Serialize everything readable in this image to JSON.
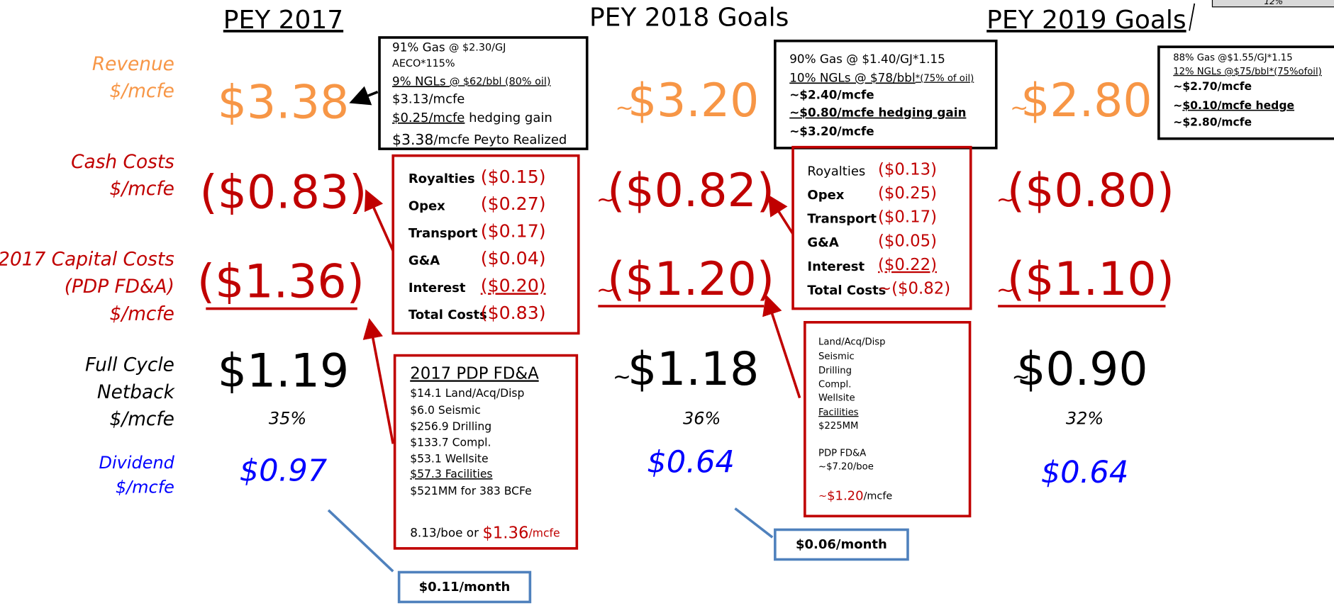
{
  "headers": [
    "PEY 2017",
    "PEY 2018 Goals",
    "PEY 2019 Goals"
  ],
  "corner_note": "12%",
  "approx_mark": "~",
  "row_labels": [
    [
      "Revenue",
      "$/mcfe"
    ],
    [
      "Cash Costs",
      "$/mcfe"
    ],
    [
      "2017 Capital Costs",
      "(PDP FD&A)",
      "$/mcfe"
    ],
    [
      "Full Cycle",
      "Netback",
      "$/mcfe"
    ],
    [
      "Dividend",
      "$/mcfe"
    ]
  ],
  "columns": [
    {
      "revenue": "$3.38",
      "cash_costs": "($0.83)",
      "capital_costs": "($1.36)",
      "netback": "$1.19",
      "netback_pct": "35%",
      "dividend": "$0.97"
    },
    {
      "revenue": "$3.20",
      "cash_costs": "($0.82)",
      "capital_costs": "($1.20)",
      "netback": "$1.18",
      "netback_pct": "36%",
      "dividend": "$0.64"
    },
    {
      "revenue": "$2.80",
      "cash_costs": "($0.80)",
      "capital_costs": "($1.10)",
      "netback": "$0.90",
      "netback_pct": "32%",
      "dividend": "$0.64"
    }
  ],
  "dividend_notes": [
    "$0.11/month",
    "$0.06/month"
  ],
  "revenue_boxes": [
    {
      "lines": [
        [
          "91% Gas ",
          "@ $2.30/GJ"
        ],
        [
          "AECO*115%"
        ],
        [
          "9% NGLs ",
          "@ $62/bbl (80% oil)"
        ],
        [
          "$3.13/mcfe"
        ],
        [
          "$0.25/mcfe",
          " hedging gain"
        ],
        [
          "$3.38",
          "/mcfe  Peyto Realized"
        ]
      ]
    },
    {
      "lines": [
        [
          "90% Gas @ $1.40/GJ*1.15"
        ],
        [
          "10% NGLs @ $78/bbl",
          "*(75% of oil)"
        ],
        [
          "~$2.40/mcfe"
        ],
        [
          "~$0.80/mcfe hedging gain"
        ],
        [
          "~$3.20/mcfe"
        ]
      ]
    },
    {
      "lines": [
        [
          "88% Gas @$1.55/GJ*1.15"
        ],
        [
          "12% NGLs @$75/bbl*(75%ofoil)"
        ],
        [
          "~$2.70/mcfe"
        ],
        [
          "~",
          "$0.10/mcfe hedge"
        ],
        [
          "~$2.80/mcfe"
        ]
      ]
    }
  ],
  "cost_boxes": [
    {
      "items": [
        {
          "label": "Royalties",
          "value": "($0.15)"
        },
        {
          "label": "Opex",
          "value": "($0.27)"
        },
        {
          "label": "Transport",
          "value": "($0.17)"
        },
        {
          "label": "G&A",
          "value": "($0.04)"
        },
        {
          "label": "Interest",
          "value": "($0.20)"
        },
        {
          "label": "Total Costs",
          "value": "($0.83)"
        }
      ]
    },
    {
      "items": [
        {
          "label": "Royalties",
          "value": "($0.13)"
        },
        {
          "label": "Opex",
          "value": "($0.25)"
        },
        {
          "label": "Transport",
          "value": "($0.17)"
        },
        {
          "label": "G&A",
          "value": "($0.05)"
        },
        {
          "label": "Interest",
          "value": "($0.22)"
        },
        {
          "label": "Total Costs",
          "value": "~($0.82)"
        }
      ]
    }
  ],
  "capital_boxes": [
    {
      "title": "2017 PDP FD&A",
      "lines": [
        "$14.1 Land/Acq/Disp",
        "$6.0 Seismic",
        "$256.9 Drilling",
        "$133.7 Compl.",
        "$53.1 Wellsite",
        "$57.3 Facilities",
        "$521MM for 383 BCFe"
      ],
      "total": [
        "8.13/boe or ",
        "$1.36",
        "/mcfe"
      ]
    },
    {
      "lines": [
        "Land/Acq/Disp",
        "Seismic",
        "Drilling",
        "Compl.",
        "Wellsite",
        "Facilities",
        "$225MM",
        "PDP FD&A",
        "~$7.20/boe"
      ],
      "total": [
        "~",
        "$1.20",
        "/mcfe"
      ]
    }
  ]
}
